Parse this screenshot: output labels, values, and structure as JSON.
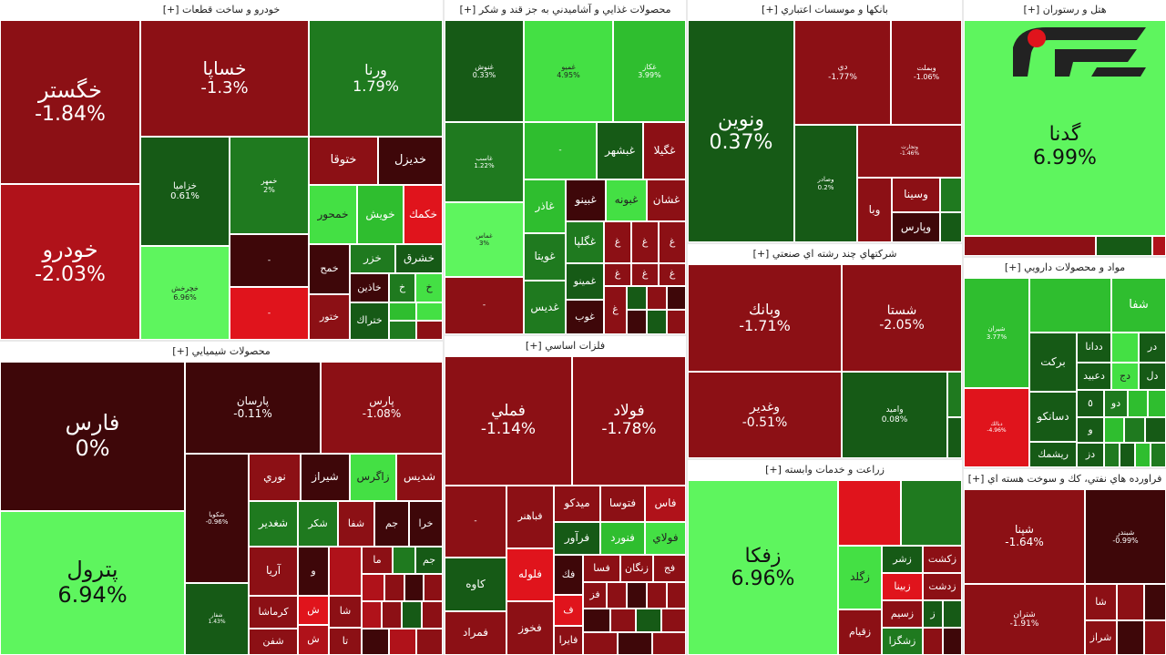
{
  "colors": {
    "dark_red": "#6e0e12",
    "red": "#b0121a",
    "bright_red": "#e0141c",
    "green": "#1f7a1f",
    "bright_green": "#44e044"
  },
  "sectors": {
    "auto": {
      "title": "خودرو و ساخت قطعات [+]"
    },
    "food": {
      "title": "محصولات غذايي و آشاميدني به جز قند و شكر [+]"
    },
    "banks": {
      "title": "بانكها و موسسات اعتباري [+]"
    },
    "hotel": {
      "title": "هتل و رستوران [+]"
    },
    "chemical": {
      "title": "محصولات شيميايي [+]"
    },
    "metals": {
      "title": "فلزات اساسي [+]"
    },
    "multi": {
      "title": "شركتهاي چند رشته اي صنعتي [+]"
    },
    "pharma": {
      "title": "مواد و محصولات دارويي [+]"
    },
    "agri": {
      "title": "زراعت و خدمات وابسته [+]"
    },
    "oil": {
      "title": "فراورده هاي نفتي، كك و سوخت هسته اي [+]"
    }
  },
  "cells": {
    "khegostar": {
      "name": "خگستر",
      "pct": "-1.84%"
    },
    "khodro": {
      "name": "خودرو",
      "pct": "-2.03%"
    },
    "khsapa": {
      "name": "خساپا",
      "pct": "-1.3%"
    },
    "varna": {
      "name": "ورنا",
      "pct": "1.79%"
    },
    "khazamia": {
      "name": "خزاميا",
      "pct": "0.61%"
    },
    "khamehr": {
      "name": "خمهر",
      "pct": "2%"
    },
    "khojarjesh": {
      "name": "خچرخش",
      "pct": "6.96%"
    },
    "khtoga": {
      "name": "ختوقا"
    },
    "khdizel": {
      "name": "خديزل"
    },
    "khamhor": {
      "name": "خمحور"
    },
    "khavish": {
      "name": "خويش"
    },
    "khakmak": {
      "name": "خكمك"
    },
    "khazar": {
      "name": "خزر"
    },
    "khsharq": {
      "name": "خشرق"
    },
    "khamah": {
      "name": "خمح"
    },
    "khadain": {
      "name": "خاذين"
    },
    "khtoor": {
      "name": "ختور"
    },
    "khtrak": {
      "name": "ختراك"
    },
    "ghoosh": {
      "name": "غنوش",
      "pct": "0.33%"
    },
    "ghamino": {
      "name": "غميو",
      "pct": "4.95%"
    },
    "ghazar": {
      "name": "غكاز",
      "pct": "3.99%"
    },
    "ghaseb": {
      "name": "غاسب",
      "pct": "1.22%"
    },
    "ghabshahr": {
      "name": "غبشهر"
    },
    "ghgila": {
      "name": "غگيلا"
    },
    "ghanino": {
      "name": "غبينو"
    },
    "ghabouneh": {
      "name": "غبونه"
    },
    "ghshan": {
      "name": "غشان"
    },
    "ghazar2": {
      "name": "غاذر"
    },
    "ghamas": {
      "name": "غماس",
      "pct": "3%"
    },
    "ghgolpa": {
      "name": "غگلپا"
    },
    "ghonita": {
      "name": "غويتا"
    },
    "ghmino": {
      "name": "غمينو"
    },
    "ghadis": {
      "name": "غديس"
    },
    "ghob": {
      "name": "غوب"
    },
    "vanovin": {
      "name": "ونوين",
      "pct": "0.37%"
    },
    "vday": {
      "name": "دي",
      "pct": "-1.77%"
    },
    "vmellat": {
      "name": "وبملت",
      "pct": "-1.06%"
    },
    "vsakhr": {
      "name": "وصادر",
      "pct": "0.2%"
    },
    "vtejarat": {
      "name": "وتجارت",
      "pct": "-1.46%"
    },
    "vsina": {
      "name": "وسينا"
    },
    "vba": {
      "name": "وبا"
    },
    "vpars": {
      "name": "وپارس"
    },
    "gadna": {
      "name": "گدنا",
      "pct": "6.99%"
    },
    "fars": {
      "name": "فارس",
      "pct": "0%"
    },
    "petrol": {
      "name": "پترول",
      "pct": "6.94%"
    },
    "parsan": {
      "name": "پارسان",
      "pct": "-0.11%"
    },
    "pars": {
      "name": "پارس",
      "pct": "-1.08%"
    },
    "shakoba": {
      "name": "شكويا",
      "pct": "-0.96%"
    },
    "noori": {
      "name": "نوري"
    },
    "shiraz": {
      "name": "شيراز"
    },
    "zagros": {
      "name": "زاگرس"
    },
    "shadis": {
      "name": "شديس"
    },
    "shghadir": {
      "name": "شغدير"
    },
    "shkor": {
      "name": "شكر"
    },
    "shsfa": {
      "name": "شفا"
    },
    "jam": {
      "name": "جم"
    },
    "khara": {
      "name": "خرا"
    },
    "arya": {
      "name": "آريا"
    },
    "vou": {
      "name": "و"
    },
    "ma": {
      "name": "ما"
    },
    "kermasha": {
      "name": "كرماشا"
    },
    "shafan": {
      "name": "شفن"
    },
    "shl": {
      "name": "ش"
    },
    "sha": {
      "name": "شا"
    },
    "ta": {
      "name": "تا"
    },
    "shafar": {
      "name": "شفار",
      "pct": "1.43%"
    },
    "famli": {
      "name": "فملي",
      "pct": "-1.14%"
    },
    "foolad": {
      "name": "فولاد",
      "pct": "-1.78%"
    },
    "fabahonar": {
      "name": "فباهنر"
    },
    "midko": {
      "name": "ميدكو"
    },
    "fasa": {
      "name": "فتوسا"
    },
    "fas": {
      "name": "فاس"
    },
    "faravar": {
      "name": "فرآور"
    },
    "fanvard": {
      "name": "فنورد"
    },
    "foolay": {
      "name": "فولاي"
    },
    "kaveh": {
      "name": "كاوه"
    },
    "falouleh": {
      "name": "فلوله"
    },
    "fk": {
      "name": "فك"
    },
    "fsa": {
      "name": "فسا"
    },
    "zangan": {
      "name": "زنگان"
    },
    "faj": {
      "name": "فج"
    },
    "famrad": {
      "name": "فمراد"
    },
    "fakhoz": {
      "name": "فخوز"
    },
    "fayra": {
      "name": "فايرا"
    },
    "fz": {
      "name": "فز"
    },
    "faf": {
      "name": "ف"
    },
    "fjaz": {
      "name": "فجاز"
    },
    "vabank": {
      "name": "وبانك",
      "pct": "-1.71%"
    },
    "shasta": {
      "name": "شستا",
      "pct": "-2.05%"
    },
    "vghadir": {
      "name": "وغدير",
      "pct": "-0.51%"
    },
    "vamid": {
      "name": "واميد",
      "pct": "0.08%"
    },
    "shafa": {
      "name": "شفا"
    },
    "shiran": {
      "name": "شيران",
      "pct": "3.77%"
    },
    "barkat": {
      "name": "بركت"
    },
    "dana": {
      "name": "ددانا"
    },
    "dr": {
      "name": "در"
    },
    "dj": {
      "name": "دج"
    },
    "dabid": {
      "name": "دعبيد"
    },
    "dal": {
      "name": "دل"
    },
    "dsanko": {
      "name": "دسانكو"
    },
    "dz": {
      "name": "دز"
    },
    "rishmak": {
      "name": "ريشمك"
    },
    "vo": {
      "name": "و"
    },
    "d5": {
      "name": "٥"
    },
    "do": {
      "name": "دو"
    },
    "dbr": {
      "name": "د"
    },
    "dbar": {
      "name": "دبالك",
      "pct": "-4.96%"
    },
    "zfka": {
      "name": "زفكا",
      "pct": "6.96%"
    },
    "zagld": {
      "name": "زگلد"
    },
    "zashr": {
      "name": "زشر"
    },
    "zkasht": {
      "name": "زكشت"
    },
    "zbina": {
      "name": "زبينا"
    },
    "zdasht": {
      "name": "زدشت"
    },
    "zqiam": {
      "name": "زقيام"
    },
    "zsim": {
      "name": "زسيم"
    },
    "zsh": {
      "name": "زشگزا"
    },
    "zz": {
      "name": "ز"
    },
    "shana": {
      "name": "شپنا",
      "pct": "-1.64%"
    },
    "shband": {
      "name": "شبندر",
      "pct": "-0.99%"
    },
    "shtran": {
      "name": "شتران",
      "pct": "-1.91%"
    },
    "shsha": {
      "name": "شا"
    },
    "shraz": {
      "name": "شراز"
    }
  }
}
